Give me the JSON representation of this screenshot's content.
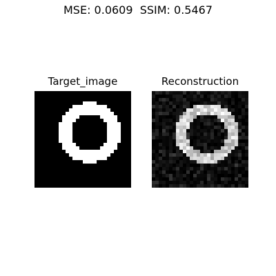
{
  "figure": {
    "suptitle": "MSE: 0.0609  SSIM: 0.5467"
  },
  "chart_data": [
    {
      "type": "heatmap",
      "title": "Target_image",
      "grid": [
        28,
        28
      ],
      "colormap": "gray",
      "value_range": [
        0,
        1
      ],
      "content": "binary digit '0' (white ring on black)",
      "ring": {
        "center": [
          11.5,
          15.5
        ],
        "outer_radius": [
          8.8,
          9.2
        ],
        "inner_radius": [
          5.2,
          5.4
        ]
      }
    },
    {
      "type": "heatmap",
      "title": "Reconstruction",
      "grid": [
        28,
        28
      ],
      "colormap": "gray",
      "value_range": [
        0,
        1
      ],
      "content": "noisy grayscale reconstruction of digit '0'",
      "ring": {
        "center": [
          11.8,
          15.5
        ],
        "outer_radius": [
          8.6,
          9.2
        ],
        "inner_radius": [
          5.6,
          5.8
        ]
      },
      "noise_level": 0.18
    }
  ]
}
